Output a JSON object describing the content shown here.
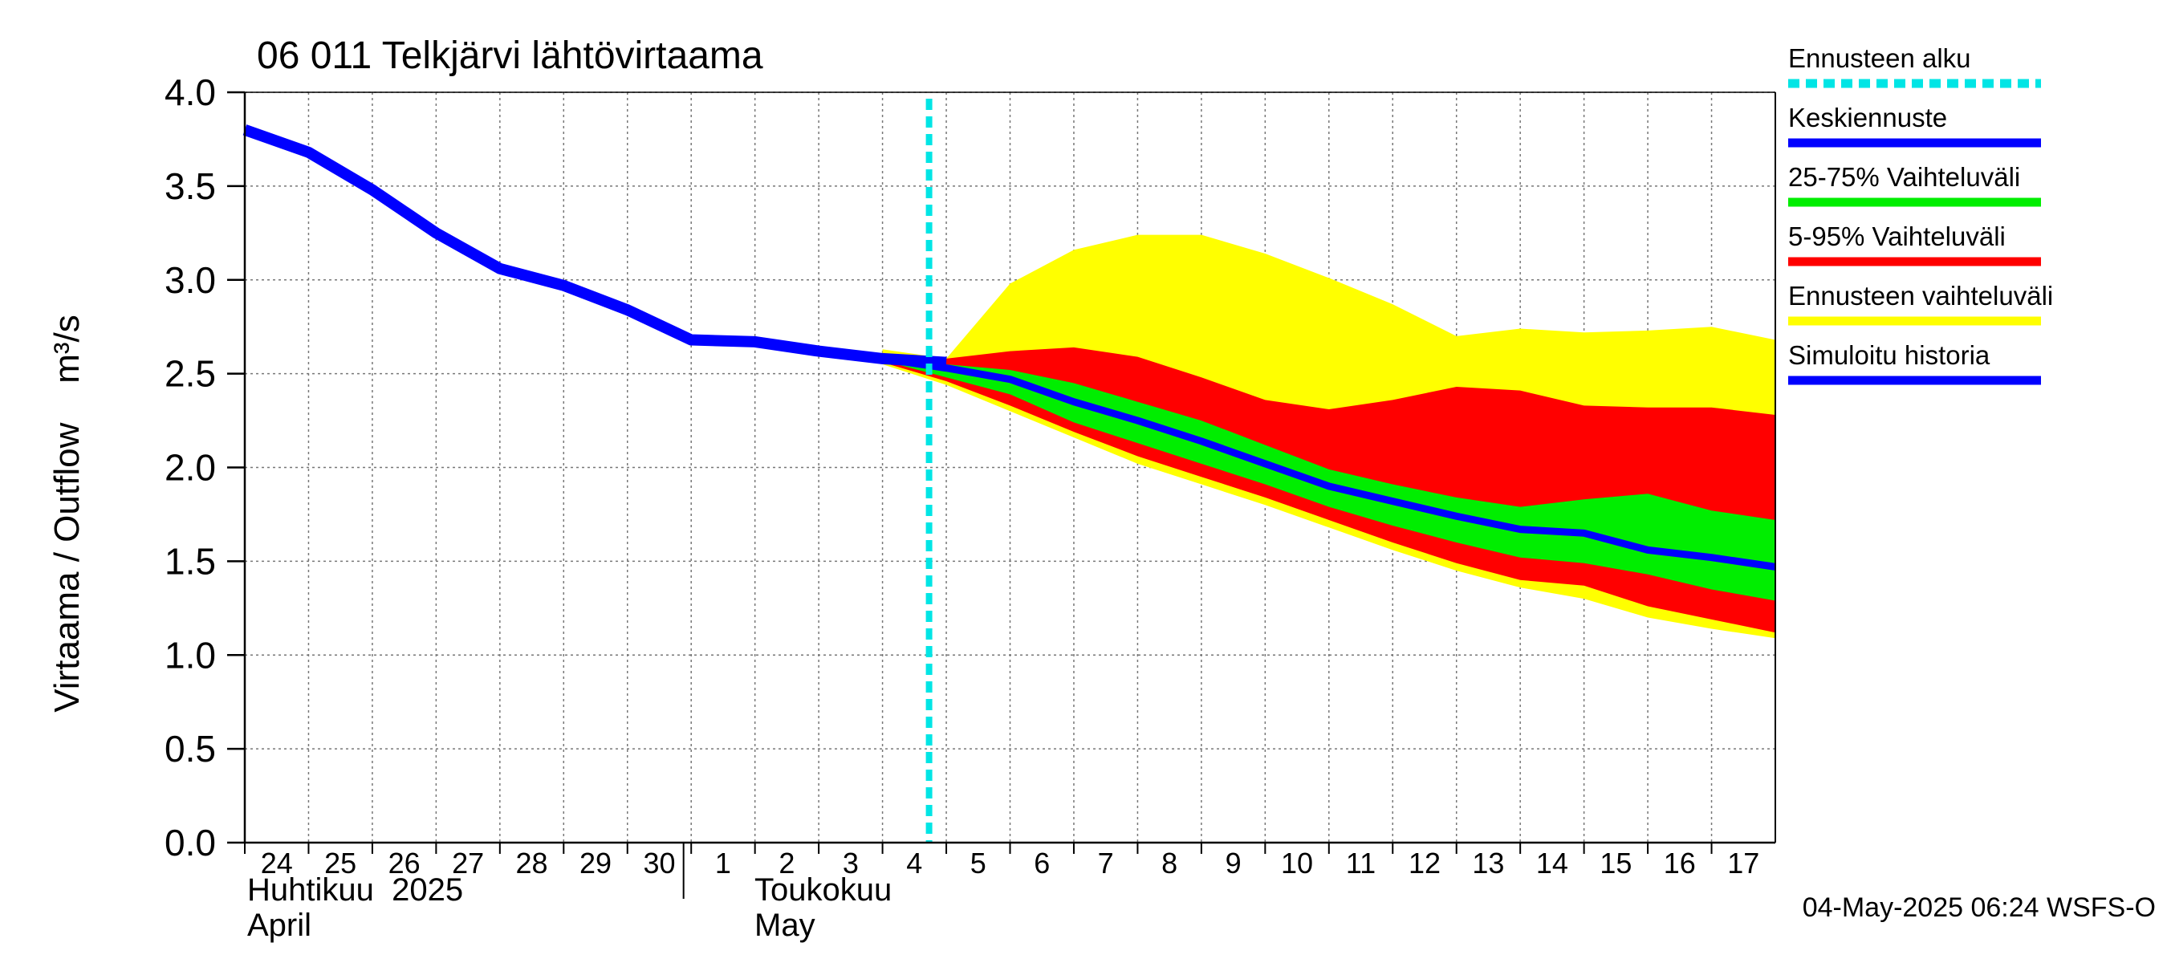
{
  "chart_data": {
    "type": "area",
    "title": "06 011 Telkjärvi lähtövirtaama",
    "ylabel": "Virtaama / Outflow    m³/s",
    "ylim": [
      0,
      4
    ],
    "y_ticks": [
      "0.0",
      "0.5",
      "1.0",
      "1.5",
      "2.0",
      "2.5",
      "3.0",
      "3.5",
      "4.0"
    ],
    "x_tick_labels": [
      "24",
      "25",
      "26",
      "27",
      "28",
      "29",
      "30",
      "1",
      "2",
      "3",
      "4",
      "5",
      "6",
      "7",
      "8",
      "9",
      "10",
      "11",
      "12",
      "13",
      "14",
      "15",
      "16",
      "17"
    ],
    "month_labels": [
      {
        "line1": "Huhtikuu  2025",
        "line2": "April"
      },
      {
        "line1": "Toukokuu",
        "line2": "May"
      }
    ],
    "grid": true,
    "forecast_start_day": 11,
    "legend": [
      {
        "label": "Ennusteen alku",
        "color": "#00e5e5",
        "style": "dashed"
      },
      {
        "label": "Keskiennuste",
        "color": "#0000ff",
        "style": "solid"
      },
      {
        "label": "25-75% Vaihteluväli",
        "color": "#00ee00",
        "style": "solid"
      },
      {
        "label": "5-95% Vaihteluväli",
        "color": "#ff0000",
        "style": "solid"
      },
      {
        "label": "Ennusteen vaihteluväli",
        "color": "#ffff00",
        "style": "solid"
      },
      {
        "label": "Simuloitu historia",
        "color": "#0000ff",
        "style": "solid"
      }
    ],
    "history": {
      "name": "Simuloitu historia",
      "day": [
        0,
        1,
        2,
        3,
        4,
        5,
        6,
        7,
        8,
        9,
        10,
        11
      ],
      "values": [
        3.8,
        3.68,
        3.48,
        3.25,
        3.06,
        2.97,
        2.84,
        2.68,
        2.67,
        2.62,
        2.58,
        2.56
      ]
    },
    "forecast_days": [
      10,
      11,
      12,
      13,
      14,
      15,
      16,
      17,
      18,
      19,
      20,
      21,
      22,
      23,
      24
    ],
    "median": {
      "name": "Keskiennuste",
      "values": [
        2.58,
        2.53,
        2.47,
        2.35,
        2.25,
        2.14,
        2.02,
        1.9,
        1.82,
        1.74,
        1.67,
        1.65,
        1.56,
        1.52,
        1.47
      ]
    },
    "band_25_75": {
      "name": "25-75% Vaihteluväli",
      "lower": [
        2.57,
        2.48,
        2.39,
        2.24,
        2.13,
        2.02,
        1.91,
        1.79,
        1.69,
        1.6,
        1.52,
        1.49,
        1.43,
        1.35,
        1.29
      ],
      "upper": [
        2.59,
        2.55,
        2.52,
        2.45,
        2.35,
        2.25,
        2.12,
        1.99,
        1.91,
        1.84,
        1.79,
        1.83,
        1.86,
        1.77,
        1.72
      ]
    },
    "band_5_95": {
      "name": "5-95% Vaihteluväli",
      "lower": [
        2.56,
        2.46,
        2.33,
        2.19,
        2.06,
        1.95,
        1.84,
        1.72,
        1.6,
        1.49,
        1.4,
        1.37,
        1.26,
        1.19,
        1.12
      ]
    },
    "band_5_95_upper": [
      2.6,
      2.58,
      2.62,
      2.64,
      2.59,
      2.48,
      2.36,
      2.31,
      2.36,
      2.43,
      2.41,
      2.33,
      2.32,
      2.32,
      2.28
    ],
    "envelope": {
      "name": "Ennusteen vaihteluväli",
      "lower": [
        2.55,
        2.44,
        2.3,
        2.16,
        2.02,
        1.91,
        1.8,
        1.68,
        1.56,
        1.45,
        1.36,
        1.3,
        1.2,
        1.14,
        1.09
      ],
      "upper": [
        2.63,
        2.58,
        2.98,
        3.16,
        3.24,
        3.24,
        3.14,
        3.01,
        2.87,
        2.7,
        2.74,
        2.72,
        2.73,
        2.75,
        2.68
      ]
    }
  },
  "timestamp": "04-May-2025 06:24 WSFS-O"
}
